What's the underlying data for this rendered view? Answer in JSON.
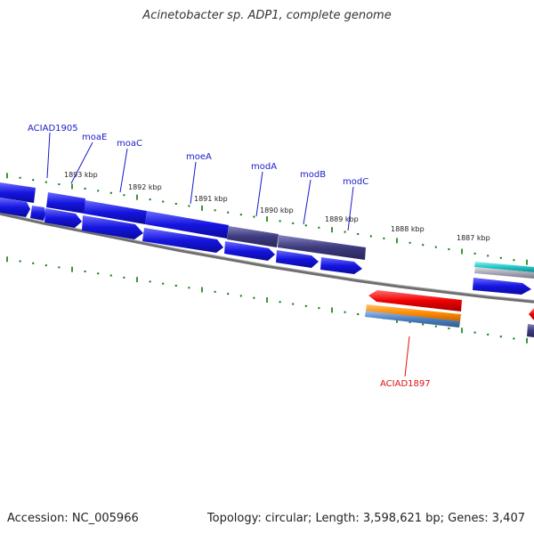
{
  "title": "Acinetobacter sp. ADP1, complete genome",
  "footer": {
    "accession": "Accession: NC_005966",
    "summary": "Topology: circular; Length: 3,598,621 bp; Genes: 3,407"
  },
  "colors": {
    "gene_blue": "#1515e0",
    "gene_purple": "#3d3a7d",
    "gene_red": "#ee0000",
    "gene_orange": "#ff8c00",
    "gene_steel": "#4d7fbf",
    "gene_teal": "#21c6c6",
    "backbone": "#808080",
    "tick_green": "#0a7a0a"
  },
  "ticks": [
    {
      "id": "1893",
      "label": "1893 kbp"
    },
    {
      "id": "1892",
      "label": "1892 kbp"
    },
    {
      "id": "1891",
      "label": "1891 kbp"
    },
    {
      "id": "1890",
      "label": "1890 kbp"
    },
    {
      "id": "1889",
      "label": "1889 kbp"
    },
    {
      "id": "1888",
      "label": "1888 kbp"
    },
    {
      "id": "1887",
      "label": "1887 kbp"
    }
  ],
  "gene_labels": [
    {
      "id": "aciad1905",
      "text": "ACIAD1905"
    },
    {
      "id": "moaE",
      "text": "moaE"
    },
    {
      "id": "moaC",
      "text": "moaC"
    },
    {
      "id": "moeA",
      "text": "moeA"
    },
    {
      "id": "modA",
      "text": "modA"
    },
    {
      "id": "modB",
      "text": "modB"
    },
    {
      "id": "modC",
      "text": "modC"
    },
    {
      "id": "aciad1897",
      "text": "ACIAD1897"
    }
  ]
}
